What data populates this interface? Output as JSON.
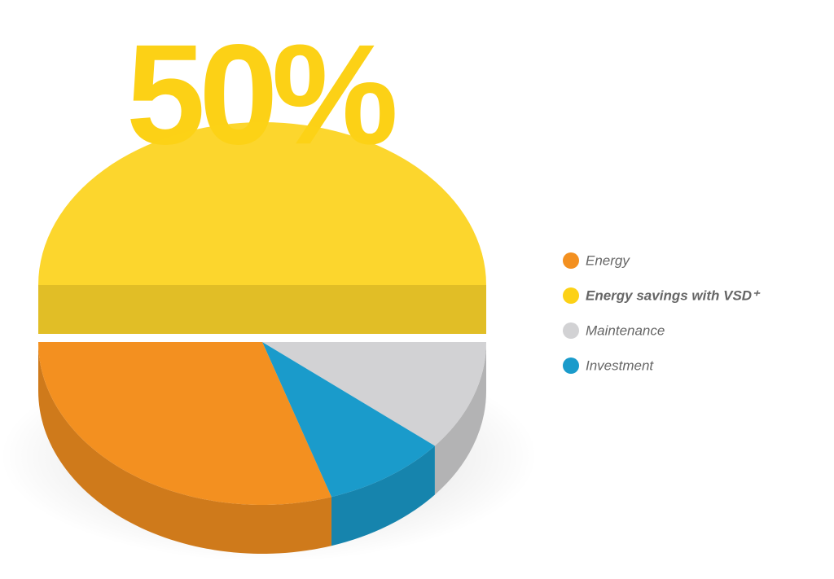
{
  "chart_data": {
    "type": "pie3d",
    "categories": [
      "Energy",
      "Energy savings with VSD⁺",
      "Maintenance",
      "Investment"
    ],
    "values": [
      30,
      50,
      11,
      9
    ],
    "value_labels": [
      null,
      "50%",
      null,
      null
    ],
    "colors": [
      "#f39020",
      "#fcd116",
      "#d2d2d4",
      "#1a9bcb"
    ],
    "legend": "right"
  }
}
